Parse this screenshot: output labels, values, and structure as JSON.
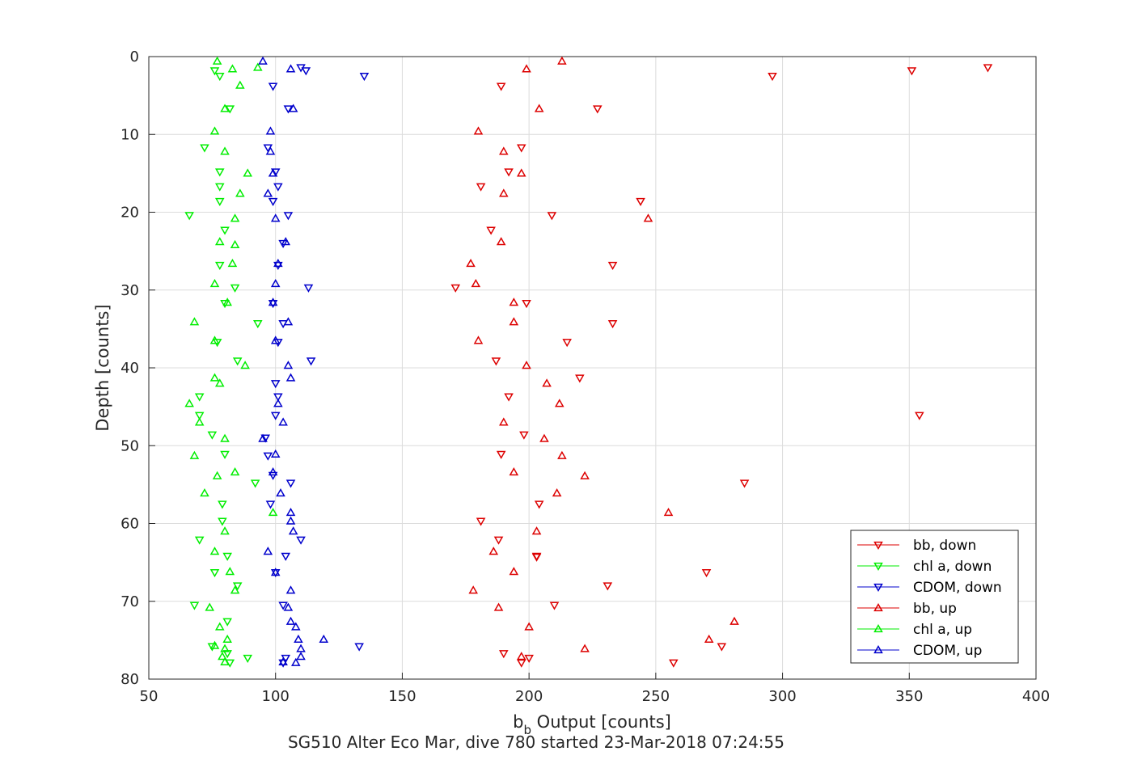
{
  "chart_data": {
    "type": "scatter",
    "xlabel": "b",
    "xlabel_sub": "b",
    "xlabel_rest": " Output [counts]",
    "ylabel": "Depth [counts]",
    "caption": "SG510 Alter Eco Mar, dive 780 started 23-Mar-2018 07:24:55",
    "xlim": [
      50,
      400
    ],
    "ylim": [
      0,
      80
    ],
    "y_reversed": true,
    "grid": true,
    "legend_position": "bottom-right",
    "xticks": [
      50,
      100,
      150,
      200,
      250,
      300,
      350,
      400
    ],
    "yticks": [
      0,
      10,
      20,
      30,
      40,
      50,
      60,
      70,
      80
    ],
    "series": [
      {
        "name": "bb, down",
        "color": "#dd0000",
        "marker": "triangle-down",
        "points": [
          [
            381,
            1.4
          ],
          [
            351,
            1.8
          ],
          [
            296,
            2.5
          ],
          [
            189,
            3.8
          ],
          [
            227,
            6.7
          ],
          [
            197,
            11.7
          ],
          [
            192,
            14.8
          ],
          [
            181,
            16.7
          ],
          [
            244,
            18.6
          ],
          [
            209,
            20.4
          ],
          [
            185,
            22.3
          ],
          [
            233,
            26.8
          ],
          [
            171,
            29.7
          ],
          [
            199,
            31.7
          ],
          [
            233,
            34.3
          ],
          [
            215,
            36.7
          ],
          [
            187,
            39.1
          ],
          [
            220,
            41.3
          ],
          [
            192,
            43.7
          ],
          [
            354,
            46.1
          ],
          [
            198,
            48.6
          ],
          [
            189,
            51.1
          ],
          [
            285,
            54.8
          ],
          [
            204,
            57.5
          ],
          [
            181,
            59.7
          ],
          [
            188,
            62.1
          ],
          [
            203,
            64.2
          ],
          [
            270,
            66.3
          ],
          [
            231,
            68.0
          ],
          [
            210,
            70.5
          ],
          [
            203,
            64.3
          ],
          [
            276,
            75.8
          ],
          [
            190,
            76.7
          ],
          [
            200,
            77.3
          ],
          [
            197,
            77.9
          ],
          [
            257,
            77.9
          ]
        ]
      },
      {
        "name": "chl a, down",
        "color": "#00ee00",
        "marker": "triangle-down",
        "points": [
          [
            76,
            1.8
          ],
          [
            78,
            2.5
          ],
          [
            82,
            6.7
          ],
          [
            72,
            11.7
          ],
          [
            78,
            14.8
          ],
          [
            78,
            16.7
          ],
          [
            78,
            18.6
          ],
          [
            66,
            20.4
          ],
          [
            80,
            22.3
          ],
          [
            78,
            26.8
          ],
          [
            84,
            29.7
          ],
          [
            80,
            31.7
          ],
          [
            93,
            34.3
          ],
          [
            77,
            36.7
          ],
          [
            85,
            39.1
          ],
          [
            70,
            43.7
          ],
          [
            70,
            46.1
          ],
          [
            75,
            48.6
          ],
          [
            80,
            51.1
          ],
          [
            92,
            54.8
          ],
          [
            79,
            57.5
          ],
          [
            79,
            59.7
          ],
          [
            70,
            62.1
          ],
          [
            81,
            64.2
          ],
          [
            76,
            66.3
          ],
          [
            85,
            68.0
          ],
          [
            68,
            70.5
          ],
          [
            81,
            72.6
          ],
          [
            75,
            75.8
          ],
          [
            81,
            76.7
          ],
          [
            89,
            77.3
          ],
          [
            82,
            77.9
          ]
        ]
      },
      {
        "name": "CDOM, down",
        "color": "#0000cc",
        "marker": "triangle-down",
        "points": [
          [
            110,
            1.4
          ],
          [
            112,
            1.8
          ],
          [
            135,
            2.5
          ],
          [
            99,
            3.8
          ],
          [
            105,
            6.7
          ],
          [
            97,
            11.7
          ],
          [
            100,
            14.8
          ],
          [
            101,
            16.7
          ],
          [
            99,
            18.6
          ],
          [
            105,
            20.4
          ],
          [
            103,
            24.0
          ],
          [
            101,
            26.8
          ],
          [
            113,
            29.7
          ],
          [
            99,
            31.7
          ],
          [
            103,
            34.3
          ],
          [
            101,
            36.7
          ],
          [
            114,
            39.1
          ],
          [
            100,
            42.0
          ],
          [
            101,
            43.7
          ],
          [
            100,
            46.1
          ],
          [
            96,
            49.0
          ],
          [
            97,
            51.3
          ],
          [
            99,
            53.8
          ],
          [
            106,
            54.8
          ],
          [
            98,
            57.5
          ],
          [
            110,
            62.1
          ],
          [
            104,
            64.2
          ],
          [
            100,
            66.3
          ],
          [
            103,
            70.5
          ],
          [
            133,
            75.8
          ],
          [
            104,
            77.3
          ],
          [
            103,
            77.9
          ]
        ]
      },
      {
        "name": "bb, up",
        "color": "#dd0000",
        "marker": "triangle-up",
        "points": [
          [
            213,
            0.6
          ],
          [
            199,
            1.6
          ],
          [
            204,
            6.7
          ],
          [
            180,
            9.6
          ],
          [
            190,
            12.2
          ],
          [
            197,
            15.0
          ],
          [
            190,
            17.6
          ],
          [
            247,
            20.8
          ],
          [
            189,
            23.8
          ],
          [
            177,
            26.6
          ],
          [
            179,
            29.2
          ],
          [
            194,
            31.6
          ],
          [
            194,
            34.1
          ],
          [
            180,
            36.5
          ],
          [
            199,
            39.7
          ],
          [
            207,
            42.0
          ],
          [
            212,
            44.6
          ],
          [
            190,
            47.0
          ],
          [
            206,
            49.1
          ],
          [
            213,
            51.3
          ],
          [
            194,
            53.4
          ],
          [
            222,
            53.9
          ],
          [
            211,
            56.1
          ],
          [
            255,
            58.6
          ],
          [
            203,
            61.0
          ],
          [
            186,
            63.6
          ],
          [
            194,
            66.2
          ],
          [
            178,
            68.6
          ],
          [
            188,
            70.8
          ],
          [
            281,
            72.6
          ],
          [
            200,
            73.3
          ],
          [
            271,
            74.9
          ],
          [
            222,
            76.1
          ],
          [
            197,
            77.1
          ]
        ]
      },
      {
        "name": "chl a, up",
        "color": "#00ee00",
        "marker": "triangle-up",
        "points": [
          [
            77,
            0.6
          ],
          [
            93,
            1.4
          ],
          [
            83,
            1.6
          ],
          [
            86,
            3.7
          ],
          [
            80,
            6.7
          ],
          [
            76,
            9.6
          ],
          [
            80,
            12.2
          ],
          [
            89,
            15.0
          ],
          [
            86,
            17.6
          ],
          [
            84,
            20.8
          ],
          [
            78,
            23.8
          ],
          [
            84,
            24.2
          ],
          [
            83,
            26.6
          ],
          [
            76,
            29.2
          ],
          [
            81,
            31.6
          ],
          [
            68,
            34.1
          ],
          [
            76,
            36.5
          ],
          [
            88,
            39.7
          ],
          [
            76,
            41.3
          ],
          [
            78,
            42.0
          ],
          [
            66,
            44.6
          ],
          [
            70,
            47.0
          ],
          [
            80,
            49.1
          ],
          [
            68,
            51.3
          ],
          [
            84,
            53.4
          ],
          [
            77,
            53.9
          ],
          [
            72,
            56.1
          ],
          [
            99,
            58.6
          ],
          [
            80,
            61.0
          ],
          [
            76,
            63.6
          ],
          [
            82,
            66.2
          ],
          [
            84,
            68.6
          ],
          [
            74,
            70.8
          ],
          [
            78,
            73.3
          ],
          [
            81,
            74.9
          ],
          [
            76,
            75.7
          ],
          [
            80,
            76.1
          ],
          [
            79,
            77.1
          ],
          [
            80,
            77.8
          ]
        ]
      },
      {
        "name": "CDOM, up",
        "color": "#0000cc",
        "marker": "triangle-up",
        "points": [
          [
            95,
            0.6
          ],
          [
            106,
            1.6
          ],
          [
            107,
            6.7
          ],
          [
            98,
            9.6
          ],
          [
            98,
            12.2
          ],
          [
            99,
            15.0
          ],
          [
            97,
            17.6
          ],
          [
            100,
            20.8
          ],
          [
            104,
            23.8
          ],
          [
            101,
            26.6
          ],
          [
            100,
            29.2
          ],
          [
            99,
            31.6
          ],
          [
            105,
            34.1
          ],
          [
            100,
            36.5
          ],
          [
            105,
            39.7
          ],
          [
            106,
            41.3
          ],
          [
            101,
            44.6
          ],
          [
            103,
            47.0
          ],
          [
            95,
            49.1
          ],
          [
            100,
            51.1
          ],
          [
            99,
            53.4
          ],
          [
            102,
            56.1
          ],
          [
            106,
            58.6
          ],
          [
            106,
            59.7
          ],
          [
            107,
            61.0
          ],
          [
            97,
            63.6
          ],
          [
            100,
            66.3
          ],
          [
            106,
            68.6
          ],
          [
            105,
            70.8
          ],
          [
            106,
            72.6
          ],
          [
            108,
            73.3
          ],
          [
            109,
            74.9
          ],
          [
            119,
            74.9
          ],
          [
            110,
            76.1
          ],
          [
            110,
            77.1
          ],
          [
            103,
            77.8
          ],
          [
            108,
            77.9
          ]
        ]
      }
    ]
  }
}
